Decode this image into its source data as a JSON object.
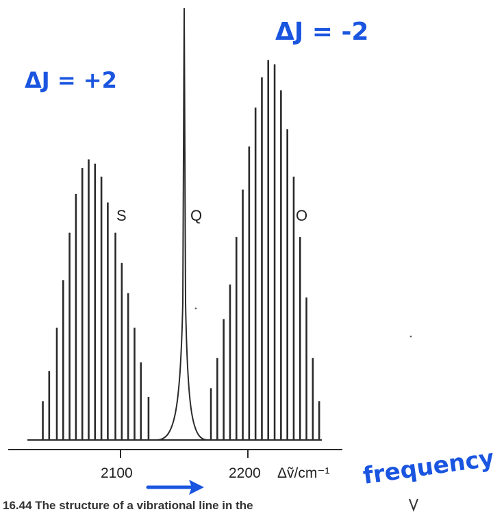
{
  "chart_data": {
    "type": "line",
    "xlabel": "Δṽ/cm⁻¹",
    "xticks": [
      2100,
      2200
    ],
    "xlim": [
      2035,
      2240
    ],
    "ylim": [
      0,
      1
    ],
    "branches": [
      {
        "name": "S",
        "role": "S branch, ΔJ = +2"
      },
      {
        "name": "Q",
        "role": "Q branch, ΔJ = 0"
      },
      {
        "name": "O",
        "role": "O branch, ΔJ = -2"
      }
    ],
    "q_branch": {
      "x": 2150,
      "y": 1.0
    },
    "s_lines": [
      {
        "x": 2039,
        "y": 0.09
      },
      {
        "x": 2044,
        "y": 0.16
      },
      {
        "x": 2050,
        "y": 0.26
      },
      {
        "x": 2055,
        "y": 0.37
      },
      {
        "x": 2060,
        "y": 0.48
      },
      {
        "x": 2065,
        "y": 0.57
      },
      {
        "x": 2070,
        "y": 0.63
      },
      {
        "x": 2075,
        "y": 0.65
      },
      {
        "x": 2080,
        "y": 0.64
      },
      {
        "x": 2085,
        "y": 0.61
      },
      {
        "x": 2090,
        "y": 0.55
      },
      {
        "x": 2096,
        "y": 0.48
      },
      {
        "x": 2101,
        "y": 0.41
      },
      {
        "x": 2106,
        "y": 0.34
      },
      {
        "x": 2111,
        "y": 0.26
      },
      {
        "x": 2116,
        "y": 0.18
      },
      {
        "x": 2122,
        "y": 0.1
      }
    ],
    "o_lines": [
      {
        "x": 2171,
        "y": 0.12
      },
      {
        "x": 2176,
        "y": 0.19
      },
      {
        "x": 2181,
        "y": 0.28
      },
      {
        "x": 2186,
        "y": 0.36
      },
      {
        "x": 2191,
        "y": 0.47
      },
      {
        "x": 2196,
        "y": 0.58
      },
      {
        "x": 2201,
        "y": 0.68
      },
      {
        "x": 2206,
        "y": 0.77
      },
      {
        "x": 2211,
        "y": 0.84
      },
      {
        "x": 2216,
        "y": 0.88
      },
      {
        "x": 2221,
        "y": 0.87
      },
      {
        "x": 2226,
        "y": 0.81
      },
      {
        "x": 2231,
        "y": 0.72
      },
      {
        "x": 2236,
        "y": 0.61
      },
      {
        "x": 2241,
        "y": 0.47
      },
      {
        "x": 2246,
        "y": 0.33
      },
      {
        "x": 2251,
        "y": 0.19
      },
      {
        "x": 2256,
        "y": 0.09
      }
    ]
  },
  "annotations": {
    "delta_j_plus": "ΔJ = +2",
    "delta_j_minus": "ΔJ = -2",
    "frequency": "frequency",
    "arrow": "increasing frequency arrow"
  },
  "caption": "16.44 The structure of a vibrational line in the",
  "colors": {
    "ink": "#1a55e0",
    "lines": "#2a2a2a"
  }
}
